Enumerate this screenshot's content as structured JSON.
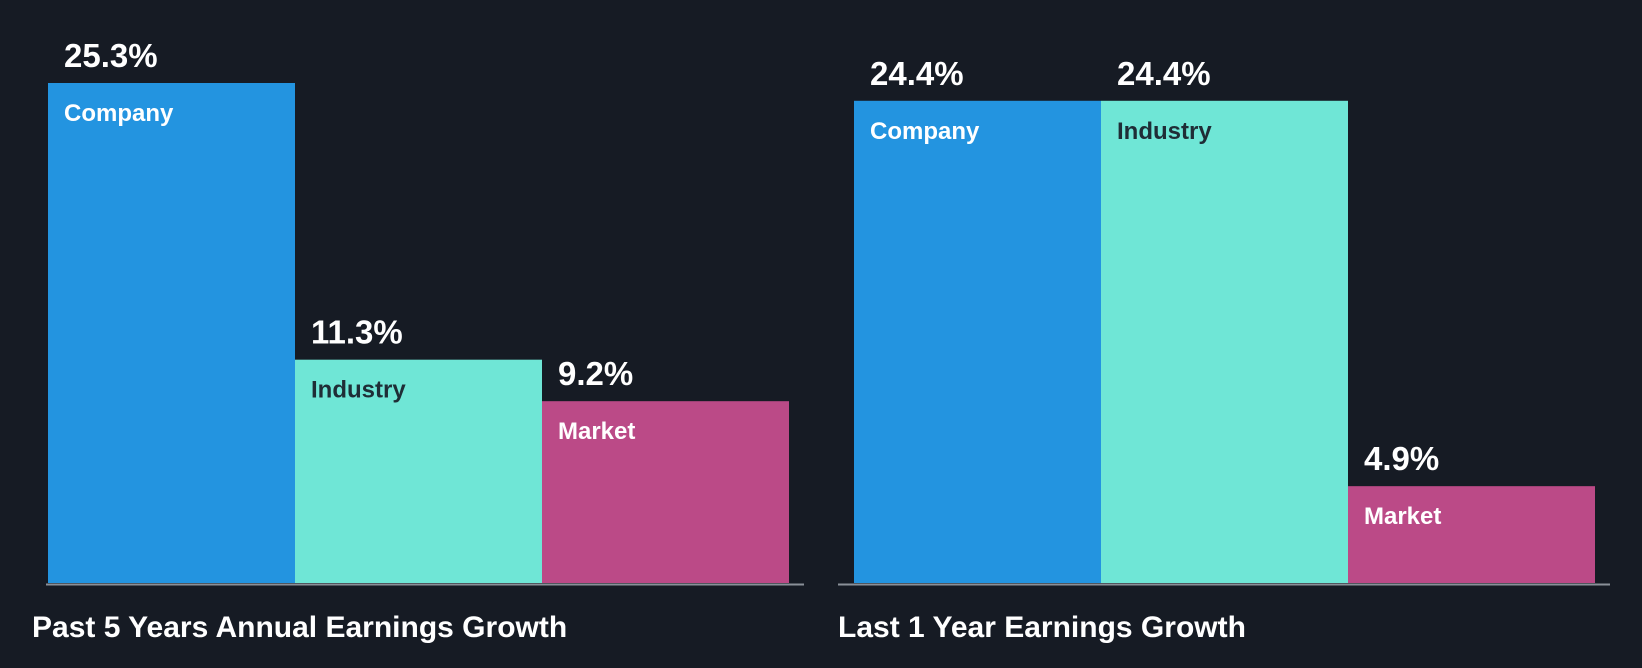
{
  "chart_data": [
    {
      "type": "bar",
      "title": "Past 5 Years Annual Earnings Growth",
      "categories": [
        "Company",
        "Industry",
        "Market"
      ],
      "values": [
        25.3,
        11.3,
        9.2
      ],
      "value_labels": [
        "25.3%",
        "11.3%",
        "9.2%"
      ],
      "colors": [
        "#2394e0",
        "#6fe6d6",
        "#bb4a87"
      ],
      "label_colors": [
        "#ffffff",
        "#1f2d36",
        "#ffffff"
      ],
      "xlabel": "",
      "ylabel": "",
      "ylim": [
        0,
        25.3
      ]
    },
    {
      "type": "bar",
      "title": "Last 1 Year Earnings Growth",
      "categories": [
        "Company",
        "Industry",
        "Market"
      ],
      "values": [
        24.4,
        24.4,
        4.9
      ],
      "value_labels": [
        "24.4%",
        "24.4%",
        "4.9%"
      ],
      "colors": [
        "#2394e0",
        "#6fe6d6",
        "#bb4a87"
      ],
      "label_colors": [
        "#ffffff",
        "#1f2d36",
        "#ffffff"
      ],
      "xlabel": "",
      "ylabel": "",
      "ylim": [
        0,
        25.3
      ]
    }
  ]
}
